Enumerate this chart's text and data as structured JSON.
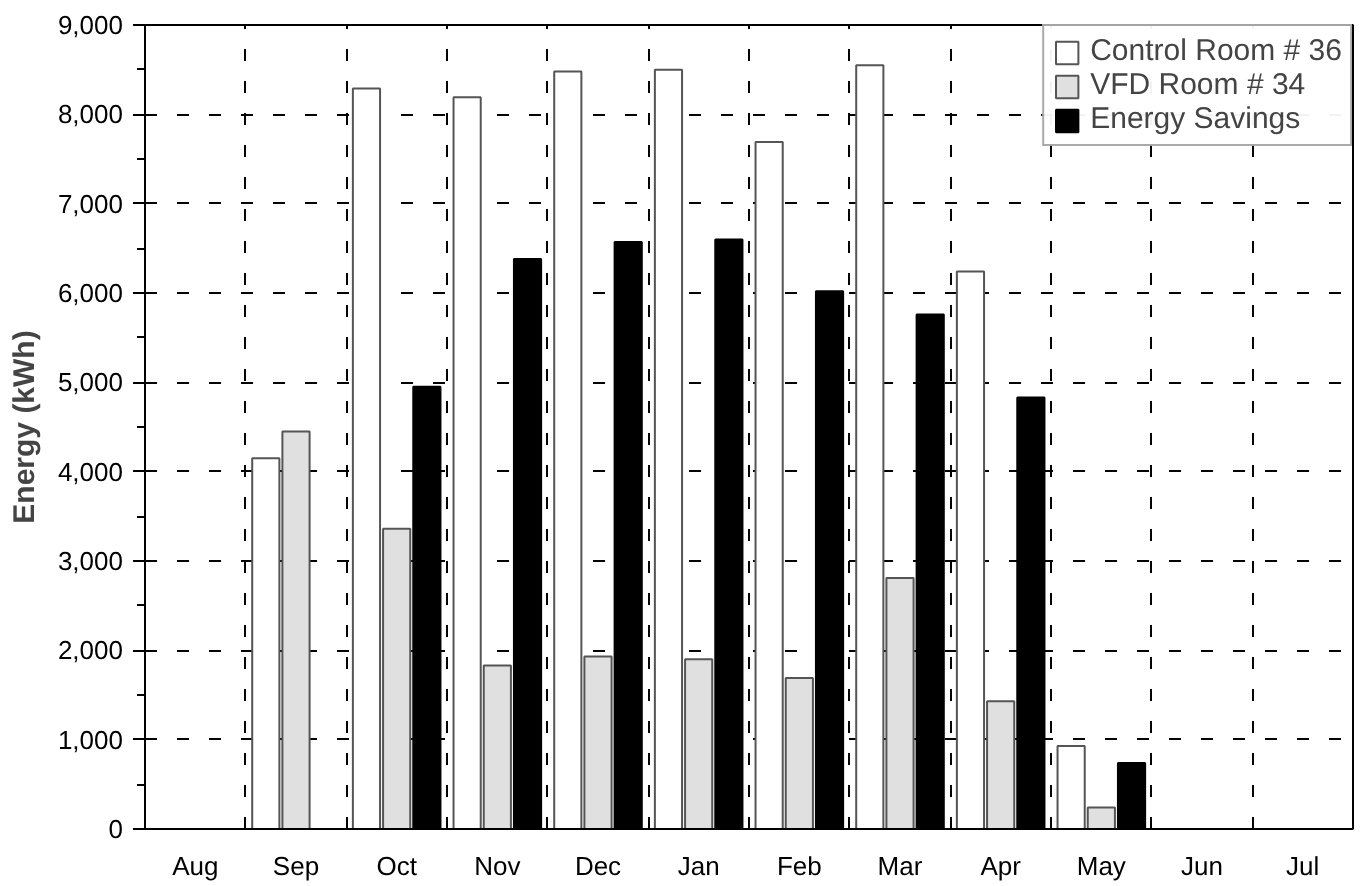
{
  "chart_data": {
    "type": "bar",
    "ylabel": "Energy (kWh)",
    "categories": [
      "Aug",
      "Sep",
      "Oct",
      "Nov",
      "Dec",
      "Jan",
      "Feb",
      "Mar",
      "Apr",
      "May",
      "Jun",
      "Jul"
    ],
    "series": [
      {
        "name": "Control Room # 36",
        "color": "#ffffff",
        "values": [
          null,
          4150,
          8290,
          8190,
          8480,
          8500,
          7690,
          8550,
          6240,
          930,
          null,
          null
        ]
      },
      {
        "name": "VFD Room # 34",
        "color": "#e0e0e0",
        "values": [
          null,
          4450,
          3360,
          1830,
          1930,
          1900,
          1690,
          2810,
          1430,
          240,
          null,
          null
        ]
      },
      {
        "name": "Energy Savings",
        "color": "#000000",
        "values": [
          null,
          null,
          4950,
          6380,
          6570,
          6600,
          6020,
          5760,
          4830,
          740,
          null,
          null
        ]
      }
    ],
    "ylim": [
      0,
      9000
    ],
    "yticks": [
      0,
      {
        "value": 1000,
        "label": "1,000"
      },
      {
        "value": 2000,
        "label": "2,000"
      },
      {
        "value": 3000,
        "label": "3,000"
      },
      {
        "value": 4000,
        "label": "4,000"
      },
      {
        "value": 5000,
        "label": "5,000"
      },
      {
        "value": 6000,
        "label": "6,000"
      },
      {
        "value": 7000,
        "label": "7,000"
      },
      {
        "value": 8000,
        "label": "8,000"
      },
      {
        "value": 9000,
        "label": "9,000"
      }
    ],
    "grid": true,
    "legend": "top right"
  }
}
